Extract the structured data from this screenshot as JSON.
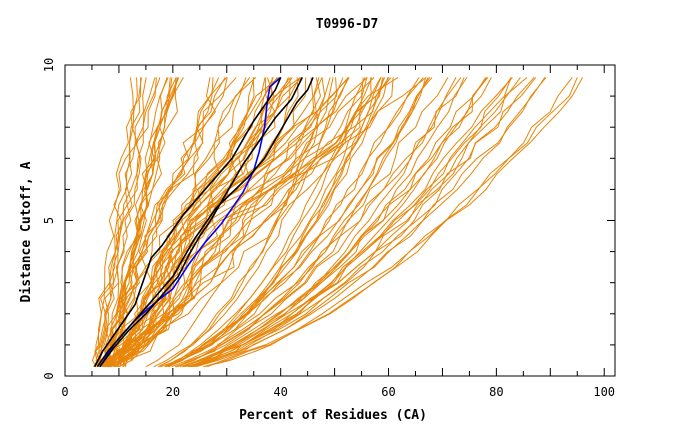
{
  "chart_data": {
    "type": "line",
    "title": "T0996-D7",
    "xlabel": "Percent of Residues (CA)",
    "ylabel": "Distance Cutoff, A",
    "xlim": [
      0,
      102
    ],
    "ylim": [
      0,
      10
    ],
    "x_ticks": [
      "0",
      "20",
      "40",
      "60",
      "80",
      "100"
    ],
    "y_ticks": [
      "0",
      "5",
      "10"
    ],
    "colors": {
      "models": "#e8860a",
      "highlight_black": "#000000",
      "highlight_blue": "#0000ff",
      "axis": "#000000"
    },
    "grid": false,
    "legend": "none",
    "series": [
      {
        "style": "blue",
        "points": [
          [
            6.5,
            0.3
          ],
          [
            9,
            1.0
          ],
          [
            13,
            1.8
          ],
          [
            17,
            2.4
          ],
          [
            20,
            2.8
          ],
          [
            23,
            3.6
          ],
          [
            26,
            4.3
          ],
          [
            29,
            4.9
          ],
          [
            31,
            5.4
          ],
          [
            33,
            5.9
          ],
          [
            35,
            6.6
          ],
          [
            36,
            7.2
          ],
          [
            37,
            8.0
          ],
          [
            37.5,
            8.8
          ],
          [
            38,
            9.3
          ],
          [
            40,
            9.6
          ]
        ]
      },
      {
        "style": "black",
        "points": [
          [
            5.5,
            0.3
          ],
          [
            7,
            0.8
          ],
          [
            9,
            1.3
          ],
          [
            11,
            1.8
          ],
          [
            13,
            2.3
          ],
          [
            14,
            2.8
          ],
          [
            15,
            3.3
          ],
          [
            16,
            3.8
          ],
          [
            18,
            4.2
          ],
          [
            20,
            4.7
          ],
          [
            22,
            5.2
          ],
          [
            25,
            5.8
          ],
          [
            28,
            6.4
          ],
          [
            31,
            7.0
          ],
          [
            33,
            7.6
          ],
          [
            35,
            8.2
          ],
          [
            37,
            8.7
          ],
          [
            39,
            9.2
          ],
          [
            40,
            9.6
          ]
        ]
      },
      {
        "style": "black",
        "points": [
          [
            6.5,
            0.3
          ],
          [
            9,
            0.9
          ],
          [
            12,
            1.5
          ],
          [
            15,
            2.0
          ],
          [
            18,
            2.6
          ],
          [
            21,
            3.2
          ],
          [
            23,
            3.9
          ],
          [
            25,
            4.5
          ],
          [
            27,
            5.0
          ],
          [
            29,
            5.6
          ],
          [
            31,
            6.2
          ],
          [
            33,
            6.8
          ],
          [
            35,
            7.3
          ],
          [
            37,
            7.8
          ],
          [
            39,
            8.3
          ],
          [
            42,
            8.9
          ],
          [
            44,
            9.6
          ]
        ]
      },
      {
        "style": "black",
        "points": [
          [
            6,
            0.3
          ],
          [
            8,
            0.8
          ],
          [
            11,
            1.4
          ],
          [
            14,
            2.0
          ],
          [
            17,
            2.6
          ],
          [
            20,
            3.2
          ],
          [
            22,
            3.8
          ],
          [
            24,
            4.4
          ],
          [
            26,
            4.9
          ],
          [
            28,
            5.4
          ],
          [
            31,
            5.9
          ],
          [
            34,
            6.4
          ],
          [
            37,
            7.0
          ],
          [
            39,
            7.6
          ],
          [
            41,
            8.2
          ],
          [
            43,
            8.8
          ],
          [
            45,
            9.2
          ],
          [
            46,
            9.6
          ]
        ]
      }
    ]
  }
}
